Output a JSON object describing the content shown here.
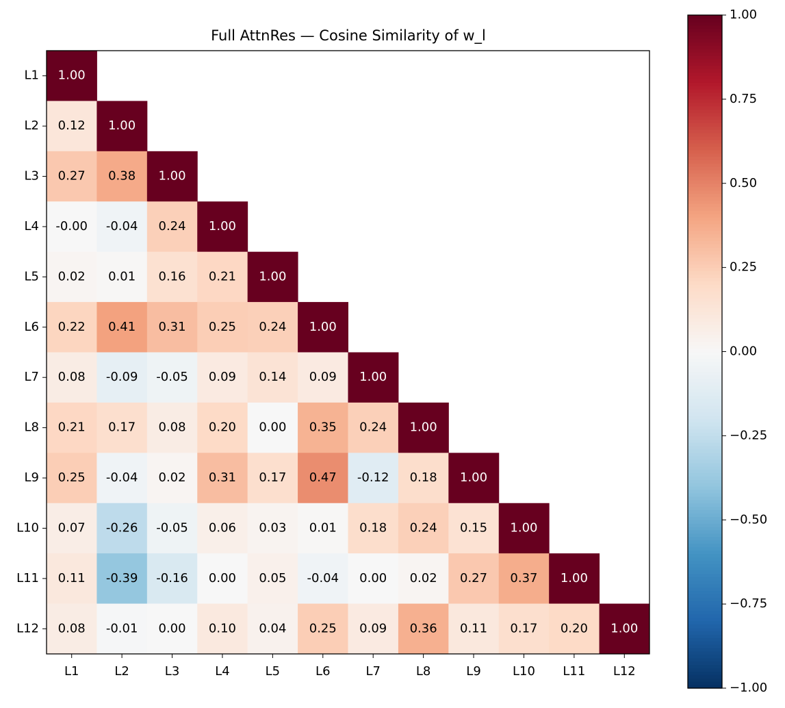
{
  "chart_data": {
    "type": "heatmap",
    "title": "Full AttnRes — Cosine Similarity of w_l",
    "x_categories": [
      "L1",
      "L2",
      "L3",
      "L4",
      "L5",
      "L6",
      "L7",
      "L8",
      "L9",
      "L10",
      "L11",
      "L12"
    ],
    "y_categories": [
      "L1",
      "L2",
      "L3",
      "L4",
      "L5",
      "L6",
      "L7",
      "L8",
      "L9",
      "L10",
      "L11",
      "L12"
    ],
    "colormap": "RdBu_r",
    "clim": [
      -1,
      1
    ],
    "cticks": [
      {
        "value": 1,
        "label": "1.00"
      },
      {
        "value": 0.75,
        "label": "0.75"
      },
      {
        "value": 0.5,
        "label": "0.50"
      },
      {
        "value": 0.25,
        "label": "0.25"
      },
      {
        "value": 0,
        "label": "0.00"
      },
      {
        "value": -0.25,
        "label": "−0.25"
      },
      {
        "value": -0.5,
        "label": "−0.50"
      },
      {
        "value": -0.75,
        "label": "−0.75"
      },
      {
        "value": -1,
        "label": "−1.00"
      }
    ],
    "values": [
      [
        1,
        null,
        null,
        null,
        null,
        null,
        null,
        null,
        null,
        null,
        null,
        null
      ],
      [
        0.12,
        1,
        null,
        null,
        null,
        null,
        null,
        null,
        null,
        null,
        null,
        null
      ],
      [
        0.27,
        0.38,
        1,
        null,
        null,
        null,
        null,
        null,
        null,
        null,
        null,
        null
      ],
      [
        0,
        -0.04,
        0.24,
        1,
        null,
        null,
        null,
        null,
        null,
        null,
        null,
        null
      ],
      [
        0.02,
        0.01,
        0.16,
        0.21,
        1,
        null,
        null,
        null,
        null,
        null,
        null,
        null
      ],
      [
        0.22,
        0.41,
        0.31,
        0.25,
        0.24,
        1,
        null,
        null,
        null,
        null,
        null,
        null
      ],
      [
        0.08,
        -0.09,
        -0.05,
        0.09,
        0.14,
        0.09,
        1,
        null,
        null,
        null,
        null,
        null
      ],
      [
        0.21,
        0.17,
        0.08,
        0.2,
        0,
        0.35,
        0.24,
        1,
        null,
        null,
        null,
        null
      ],
      [
        0.25,
        -0.04,
        0.02,
        0.31,
        0.17,
        0.47,
        -0.12,
        0.18,
        1,
        null,
        null,
        null
      ],
      [
        0.07,
        -0.26,
        -0.05,
        0.06,
        0.03,
        0.01,
        0.18,
        0.24,
        0.15,
        1,
        null,
        null
      ],
      [
        0.11,
        -0.39,
        -0.16,
        0,
        0.05,
        -0.04,
        0,
        0.02,
        0.27,
        0.37,
        1,
        null
      ],
      [
        0.08,
        -0.01,
        0,
        0.1,
        0.04,
        0.25,
        0.09,
        0.36,
        0.11,
        0.17,
        0.2,
        1
      ]
    ],
    "value_labels": [
      [
        "1.00",
        null,
        null,
        null,
        null,
        null,
        null,
        null,
        null,
        null,
        null,
        null
      ],
      [
        "0.12",
        "1.00",
        null,
        null,
        null,
        null,
        null,
        null,
        null,
        null,
        null,
        null
      ],
      [
        "0.27",
        "0.38",
        "1.00",
        null,
        null,
        null,
        null,
        null,
        null,
        null,
        null,
        null
      ],
      [
        "-0.00",
        "-0.04",
        "0.24",
        "1.00",
        null,
        null,
        null,
        null,
        null,
        null,
        null,
        null
      ],
      [
        "0.02",
        "0.01",
        "0.16",
        "0.21",
        "1.00",
        null,
        null,
        null,
        null,
        null,
        null,
        null
      ],
      [
        "0.22",
        "0.41",
        "0.31",
        "0.25",
        "0.24",
        "1.00",
        null,
        null,
        null,
        null,
        null,
        null
      ],
      [
        "0.08",
        "-0.09",
        "-0.05",
        "0.09",
        "0.14",
        "0.09",
        "1.00",
        null,
        null,
        null,
        null,
        null
      ],
      [
        "0.21",
        "0.17",
        "0.08",
        "0.20",
        "0.00",
        "0.35",
        "0.24",
        "1.00",
        null,
        null,
        null,
        null
      ],
      [
        "0.25",
        "-0.04",
        "0.02",
        "0.31",
        "0.17",
        "0.47",
        "-0.12",
        "0.18",
        "1.00",
        null,
        null,
        null
      ],
      [
        "0.07",
        "-0.26",
        "-0.05",
        "0.06",
        "0.03",
        "0.01",
        "0.18",
        "0.24",
        "0.15",
        "1.00",
        null,
        null
      ],
      [
        "0.11",
        "-0.39",
        "-0.16",
        "0.00",
        "0.05",
        "-0.04",
        "0.00",
        "0.02",
        "0.27",
        "0.37",
        "1.00",
        null
      ],
      [
        "0.08",
        "-0.01",
        "0.00",
        "0.10",
        "0.04",
        "0.25",
        "0.09",
        "0.36",
        "0.11",
        "0.17",
        "0.20",
        "1.00"
      ]
    ]
  }
}
